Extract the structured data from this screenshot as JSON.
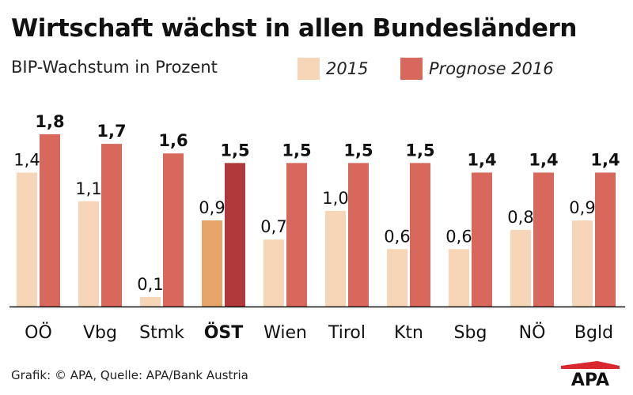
{
  "title": "Wirtschaft wächst in allen Bundesländern",
  "subtitle": "BIP-Wachstum in Prozent",
  "footer": "Grafik: © APA, Quelle: APA/Bank Austria",
  "logo_text": "APA",
  "colors": {
    "series_2015": "#f6d6b6",
    "series_2016": "#d7685b",
    "highlight_2015": "#e6a467",
    "highlight_2016": "#b2393b",
    "logo_red": "#d8282e"
  },
  "chart_data": {
    "type": "bar",
    "title": "Wirtschaft wächst in allen Bundesländern",
    "subtitle": "BIP-Wachstum in Prozent",
    "categories": [
      "OÖ",
      "Vbg",
      "Stmk",
      "ÖST",
      "Wien",
      "Tirol",
      "Ktn",
      "Sbg",
      "NÖ",
      "Bgld"
    ],
    "highlight_category": "ÖST",
    "series": [
      {
        "name": "2015",
        "values": [
          1.4,
          1.1,
          0.1,
          0.9,
          0.7,
          1.0,
          0.6,
          0.6,
          0.8,
          0.9
        ],
        "labels": [
          "1,4",
          "1,1",
          "0,1",
          "0,9",
          "0,7",
          "1,0",
          "0,6",
          "0,6",
          "0,8",
          "0,9"
        ]
      },
      {
        "name": "Prognose 2016",
        "values": [
          1.8,
          1.7,
          1.6,
          1.5,
          1.5,
          1.5,
          1.5,
          1.4,
          1.4,
          1.4
        ],
        "labels": [
          "1,8",
          "1,7",
          "1,6",
          "1,5",
          "1,5",
          "1,5",
          "1,5",
          "1,4",
          "1,4",
          "1,4"
        ]
      }
    ],
    "ylim": [
      0,
      1.8
    ],
    "xlabel": "",
    "ylabel": "",
    "legend_placement": "top-right",
    "grid": false
  }
}
